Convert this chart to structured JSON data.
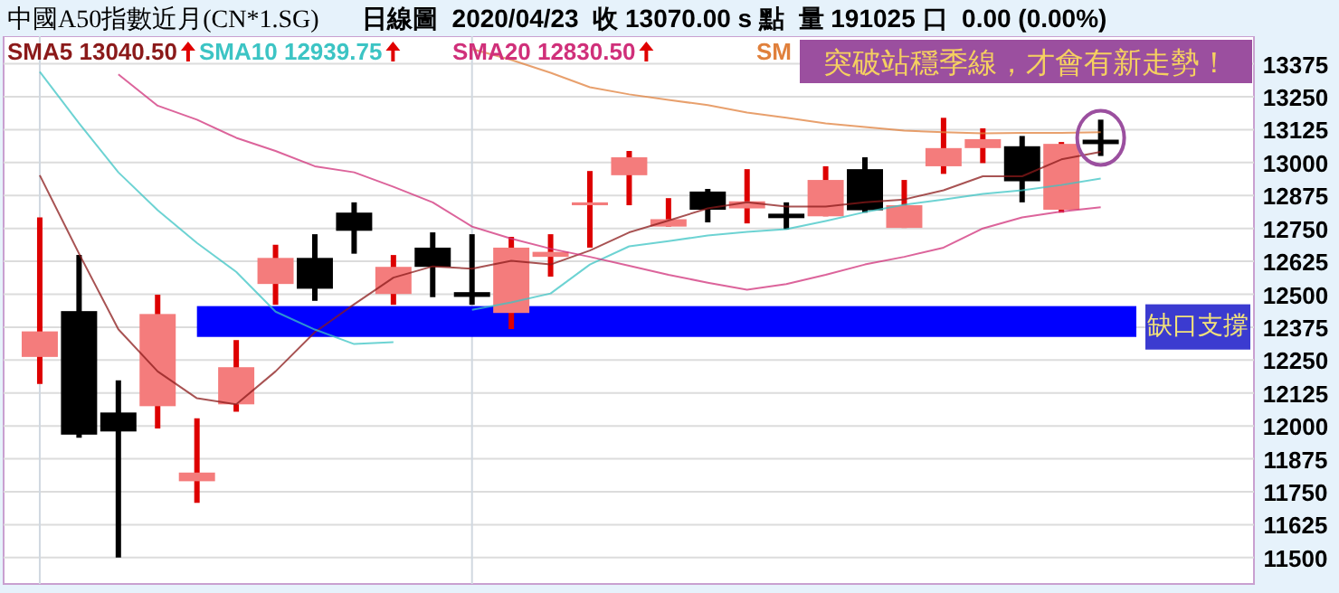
{
  "chart_data": {
    "type": "candlestick",
    "title": "中國A50指數近月(CN*1.SG)",
    "subtitle": "日線圖  2020/04/23  收 13070.00 s 點  量 191025 口  0.00 (0.00%)",
    "categories": [
      null,
      null,
      null,
      null,
      null,
      null,
      null,
      null,
      null,
      null,
      null,
      null,
      null,
      null,
      null,
      null,
      null,
      null,
      null,
      null,
      null,
      null,
      null,
      null,
      null,
      null,
      null,
      null
    ],
    "ohlc": [
      [
        12262,
        12792,
        12159,
        12359
      ],
      [
        12436,
        12649,
        11955,
        11967
      ],
      [
        12051,
        12173,
        11500,
        11979
      ],
      [
        12075,
        12498,
        11990,
        12425
      ],
      [
        11790,
        12029,
        11708,
        11823
      ],
      [
        12082,
        12326,
        12054,
        12223
      ],
      [
        12539,
        12688,
        12460,
        12638
      ],
      [
        12638,
        12728,
        12475,
        12521
      ],
      [
        12810,
        12849,
        12654,
        12741
      ],
      [
        12501,
        12649,
        12460,
        12604
      ],
      [
        12677,
        12735,
        12489,
        12604
      ],
      [
        12508,
        12728,
        12460,
        12490
      ],
      [
        12429,
        12718,
        12368,
        12677
      ],
      [
        12642,
        12728,
        12567,
        12661
      ],
      [
        12838,
        12968,
        12677,
        12849
      ],
      [
        12952,
        13044,
        12838,
        13020
      ],
      [
        12757,
        12865,
        12757,
        12785
      ],
      [
        12890,
        12900,
        12773,
        12821
      ],
      [
        12826,
        12975,
        12769,
        12853
      ],
      [
        12806,
        12849,
        12746,
        12789
      ],
      [
        12796,
        12986,
        12796,
        12934
      ],
      [
        12975,
        13020,
        12810,
        12819
      ],
      [
        12752,
        12934,
        12752,
        12838
      ],
      [
        12986,
        13170,
        12957,
        13055
      ],
      [
        13055,
        13130,
        12998,
        13089
      ],
      [
        13062,
        13101,
        12849,
        12929
      ],
      [
        12821,
        13078,
        12810,
        13071
      ],
      [
        13087,
        13163,
        13025,
        13070
      ]
    ],
    "colors": [
      "#f47c7c",
      "#000000",
      "#000000",
      "#f47c7c",
      "#f47c7c",
      "#f47c7c",
      "#f47c7c",
      "#000000",
      "#000000",
      "#f47c7c",
      "#000000",
      "#000000",
      "#f47c7c",
      "#f47c7c",
      "#f47c7c",
      "#f47c7c",
      "#f47c7c",
      "#000000",
      "#f47c7c",
      "#000000",
      "#f47c7c",
      "#000000",
      "#f47c7c",
      "#f47c7c",
      "#f47c7c",
      "#000000",
      "#f47c7c",
      "#000000"
    ],
    "series": [
      {
        "name": "SMA5 13040.50",
        "type": "line",
        "color": "#8b1a1a",
        "values": [
          12952,
          12654,
          12367,
          12207,
          12105,
          12082,
          12207,
          12356,
          12462,
          12563,
          12606,
          12597,
          12627,
          12613,
          12666,
          12735,
          12780,
          12826,
          12849,
          12833,
          12833,
          12849,
          12860,
          12895,
          12948,
          12948,
          13012,
          13040.5
        ]
      },
      {
        "name": "SMA10 12939.75",
        "type": "line",
        "color": "#3cc4c4",
        "values": [
          13345,
          13149,
          12963,
          12819,
          12695,
          12585,
          12434,
          12366,
          12311,
          12318,
          null,
          12441,
          12469,
          12503,
          12613,
          12682,
          12702,
          12723,
          12737,
          12747,
          12778,
          12812,
          12840,
          12860,
          12881,
          12895,
          12915,
          12939.75
        ]
      },
      {
        "name": "SMA20 12830.50",
        "type": "line",
        "color": "#d0307a",
        "values": [
          null,
          null,
          13335,
          13216,
          13163,
          13094,
          13044,
          12986,
          12963,
          12908,
          12849,
          12757,
          12711,
          12673,
          12642,
          12608,
          12574,
          12544,
          12517,
          12539,
          12574,
          12613,
          12642,
          12677,
          12750,
          12792,
          12814,
          12830.5
        ]
      },
      {
        "name": "SM",
        "type": "line",
        "color": "#e0803c",
        "values": [
          null,
          null,
          null,
          null,
          null,
          null,
          null,
          null,
          null,
          null,
          null,
          13431,
          13390,
          13341,
          13286,
          13259,
          13238,
          13218,
          13190,
          13170,
          13149,
          13135,
          13121,
          13115,
          13111,
          13113,
          13113,
          13115
        ]
      }
    ],
    "ylim": [
      11400,
      13480
    ],
    "yticks": [
      11500,
      11625,
      11750,
      11875,
      12000,
      12125,
      12250,
      12375,
      12500,
      12625,
      12750,
      12875,
      13000,
      13125,
      13250,
      13375
    ],
    "grid": "y",
    "bands": [
      {
        "axis": "y",
        "from": 12338,
        "to": 12455,
        "color": "#0000ff",
        "label": "缺口支撐"
      }
    ],
    "annotations": [
      "突破站穩季線，才會有新走勢！"
    ]
  }
}
